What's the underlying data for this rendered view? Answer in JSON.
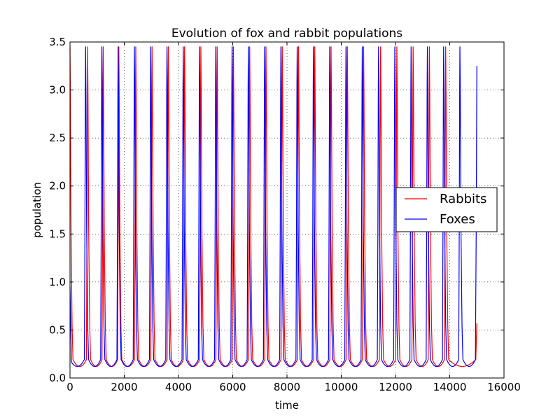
{
  "chart_data": {
    "type": "line",
    "title": "Evolution of fox and rabbit populations",
    "xlabel": "time",
    "ylabel": "population",
    "xlim": [
      0,
      16000
    ],
    "ylim": [
      0.0,
      3.5
    ],
    "xticks": [
      0,
      2000,
      4000,
      6000,
      8000,
      10000,
      12000,
      14000,
      16000
    ],
    "xtick_labels": [
      "0",
      "2000",
      "4000",
      "6000",
      "8000",
      "10000",
      "12000",
      "14000",
      "16000"
    ],
    "yticks": [
      0.0,
      0.5,
      1.0,
      1.5,
      2.0,
      2.5,
      3.0,
      3.5
    ],
    "ytick_labels": [
      "0.0",
      "0.5",
      "1.0",
      "1.5",
      "2.0",
      "2.5",
      "3.0",
      "3.5"
    ],
    "grid": true,
    "grid_style": "dotted",
    "legend_position": "center-right",
    "series": [
      {
        "name": "Rabbits",
        "color": "#ff0000",
        "peaks": [
          0,
          650,
          1225,
          1800,
          2425,
          3025,
          3625,
          4225,
          4825,
          5425,
          6025,
          6625,
          7225,
          7825,
          8425,
          9025,
          9625,
          10225,
          10825,
          11450,
          12050,
          12650,
          13250,
          13850
        ],
        "peak_value": 3.45,
        "trough_value": 0.12,
        "end_x": 15000,
        "end_value": 0.57
      },
      {
        "name": "Foxes",
        "color": "#0000ff",
        "peaks": [
          575,
          1175,
          1775,
          2375,
          2975,
          3575,
          4175,
          4775,
          5375,
          5975,
          6575,
          7175,
          7775,
          8375,
          8975,
          9575,
          10175,
          10775,
          11375,
          11975,
          12575,
          13175,
          13775,
          14375
        ],
        "peak_value": 3.45,
        "trough_value": 0.12,
        "start_x": 0,
        "start_value": 0.95,
        "end_x": 15000,
        "end_value": 3.25
      }
    ]
  }
}
